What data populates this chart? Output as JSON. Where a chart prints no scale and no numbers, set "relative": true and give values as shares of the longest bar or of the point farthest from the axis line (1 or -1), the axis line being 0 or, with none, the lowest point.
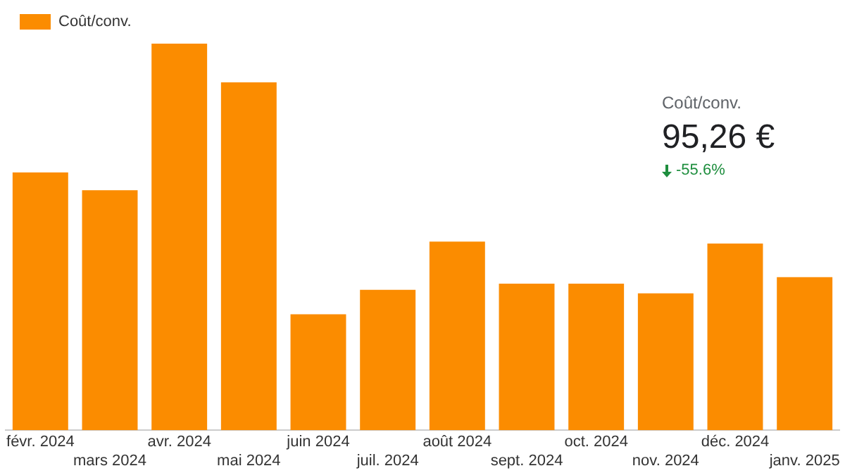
{
  "chart_data": {
    "type": "bar",
    "relative": true,
    "categories": [
      "févr. 2024",
      "mars 2024",
      "avr. 2024",
      "mai 2024",
      "juin 2024",
      "juil. 2024",
      "août 2024",
      "sept. 2024",
      "oct. 2024",
      "nov. 2024",
      "déc. 2024",
      "janv. 2025"
    ],
    "series": [
      {
        "name": "Coût/conv.",
        "color": "#fb8c00",
        "values": [
          0.667,
          0.621,
          1,
          0.9,
          0.3,
          0.363,
          0.488,
          0.379,
          0.379,
          0.354,
          0.483,
          0.396
        ]
      }
    ],
    "legend": "top left",
    "grid": false,
    "annotations": [
      "Coût/conv.",
      "95,26 €",
      "-55.6%"
    ]
  }
}
